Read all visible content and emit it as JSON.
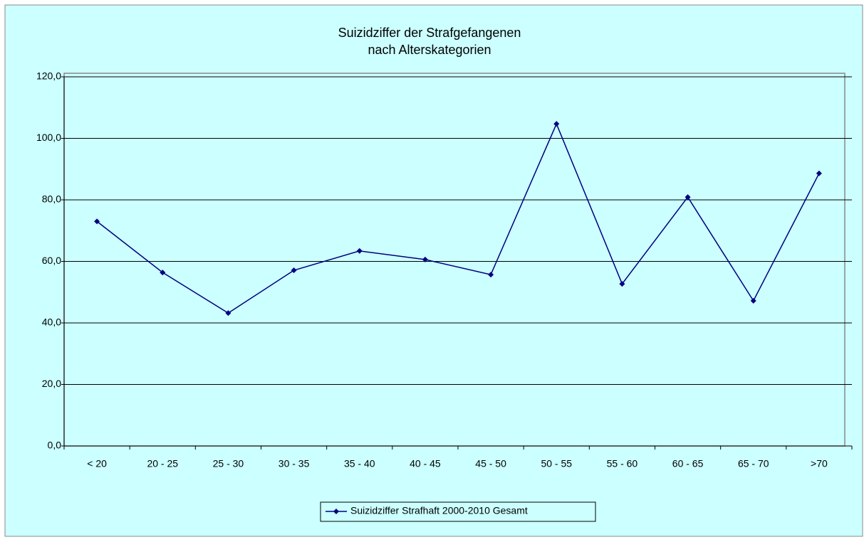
{
  "chart_data": {
    "type": "line",
    "title": [
      "Suizidziffer der Strafgefangenen",
      "nach Alterskategorien"
    ],
    "categories": [
      "< 20",
      "20 - 25",
      "25 - 30",
      "30 - 35",
      "35 - 40",
      "40 - 45",
      "45 - 50",
      "50 - 55",
      "55 - 60",
      "60 - 65",
      "65 - 70",
      ">70"
    ],
    "series": [
      {
        "name": "Suizidziffer Strafhaft 2000-2010 Gesamt",
        "color": "#000080",
        "values": [
          73.0,
          56.4,
          43.2,
          57.1,
          63.4,
          60.6,
          55.7,
          104.7,
          52.7,
          80.9,
          47.2,
          88.6
        ]
      }
    ],
    "ylim": [
      0,
      120
    ],
    "yticks": [
      {
        "value": 0,
        "label": "0,0"
      },
      {
        "value": 20,
        "label": "20,0"
      },
      {
        "value": 40,
        "label": "40,0"
      },
      {
        "value": 60,
        "label": "60,0"
      },
      {
        "value": 80,
        "label": "80,0"
      },
      {
        "value": 100,
        "label": "100,0"
      },
      {
        "value": 120,
        "label": "120,0"
      }
    ],
    "grid": true,
    "legend": "bottom"
  }
}
